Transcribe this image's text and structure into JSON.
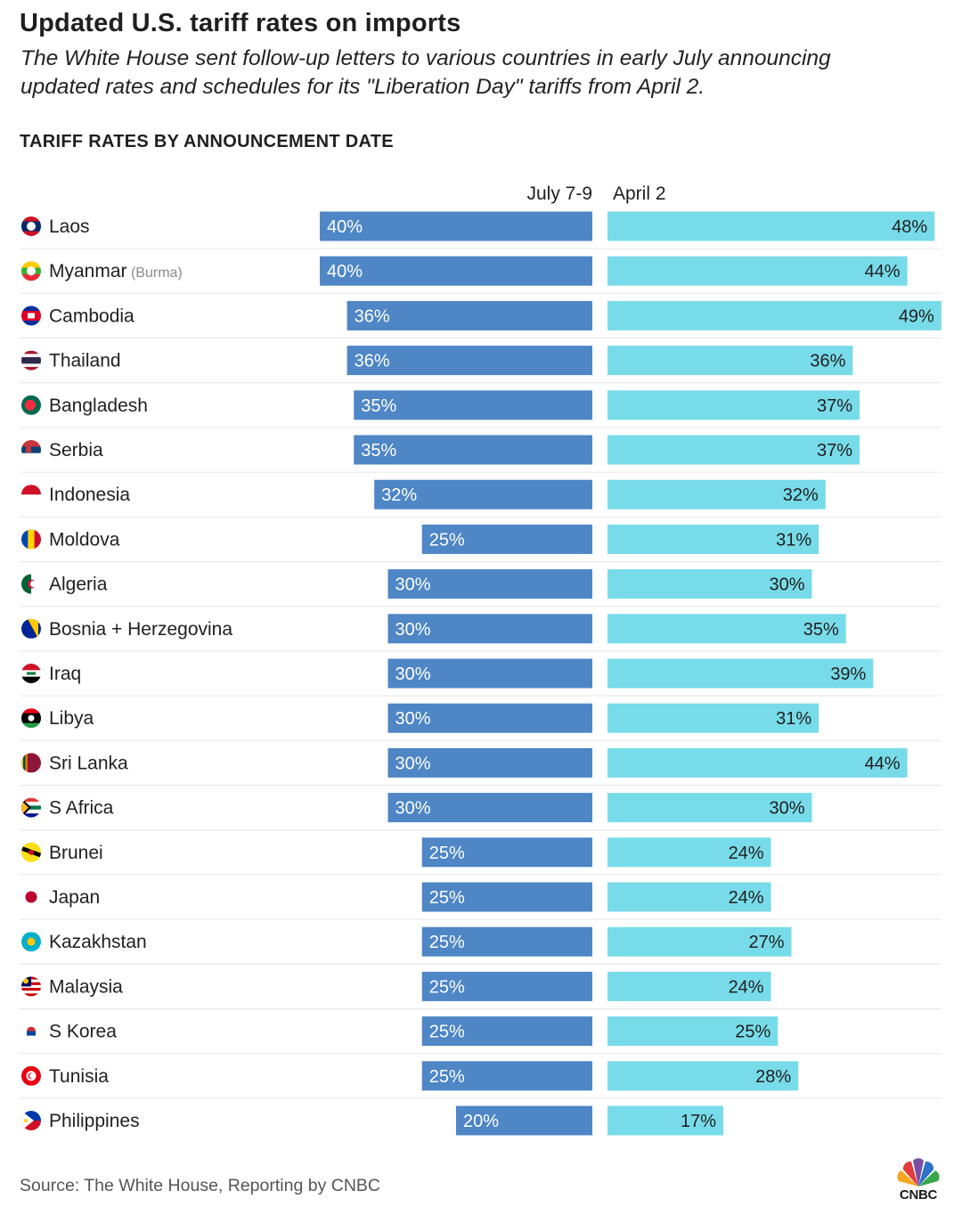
{
  "header": {
    "title": "Updated U.S. tariff rates on imports",
    "subtitle": "The White House sent follow-up letters to various countries in early July announcing updated rates and schedules for its \"Liberation Day\" tariffs from April 2.",
    "section_title": "TARIFF RATES BY ANNOUNCEMENT DATE"
  },
  "colors": {
    "july": "#4e86c6",
    "april": "#78dbe9",
    "text": "#1f1f1f",
    "divider": "#e6e6e6"
  },
  "chart_data": {
    "type": "bar",
    "orientation": "horizontal",
    "value_suffix": "%",
    "series": [
      {
        "name": "July 7-9",
        "values": [
          40,
          40,
          36,
          36,
          35,
          35,
          32,
          25,
          30,
          30,
          30,
          30,
          30,
          30,
          25,
          25,
          25,
          25,
          25,
          25,
          20
        ]
      },
      {
        "name": "April 2",
        "values": [
          48,
          44,
          49,
          36,
          37,
          37,
          32,
          31,
          30,
          35,
          39,
          31,
          44,
          30,
          24,
          24,
          27,
          24,
          25,
          28,
          17
        ]
      }
    ],
    "categories": [
      {
        "label": "Laos",
        "flag": "laos-flag-icon"
      },
      {
        "label": "Myanmar",
        "note": "(Burma)",
        "flag": "myanmar-flag-icon"
      },
      {
        "label": "Cambodia",
        "flag": "cambodia-flag-icon"
      },
      {
        "label": "Thailand",
        "flag": "thailand-flag-icon"
      },
      {
        "label": "Bangladesh",
        "flag": "bangladesh-flag-icon"
      },
      {
        "label": "Serbia",
        "flag": "serbia-flag-icon"
      },
      {
        "label": "Indonesia",
        "flag": "indonesia-flag-icon"
      },
      {
        "label": "Moldova",
        "flag": "moldova-flag-icon"
      },
      {
        "label": "Algeria",
        "flag": "algeria-flag-icon"
      },
      {
        "label": "Bosnia + Herzegovina",
        "flag": "bosnia-flag-icon"
      },
      {
        "label": "Iraq",
        "flag": "iraq-flag-icon"
      },
      {
        "label": "Libya",
        "flag": "libya-flag-icon"
      },
      {
        "label": "Sri Lanka",
        "flag": "sri-lanka-flag-icon"
      },
      {
        "label": "S Africa",
        "flag": "south-africa-flag-icon"
      },
      {
        "label": "Brunei",
        "flag": "brunei-flag-icon"
      },
      {
        "label": "Japan",
        "flag": "japan-flag-icon"
      },
      {
        "label": "Kazakhstan",
        "flag": "kazakhstan-flag-icon"
      },
      {
        "label": "Malaysia",
        "flag": "malaysia-flag-icon"
      },
      {
        "label": "S Korea",
        "flag": "south-korea-flag-icon"
      },
      {
        "label": "Tunisia",
        "flag": "tunisia-flag-icon"
      },
      {
        "label": "Philippines",
        "flag": "philippines-flag-icon"
      }
    ],
    "legend_placement": "top, above each bar column",
    "grid": false
  },
  "footer": {
    "source": "Source: The White House, Reporting by CNBC",
    "logo_text": "CNBC"
  }
}
